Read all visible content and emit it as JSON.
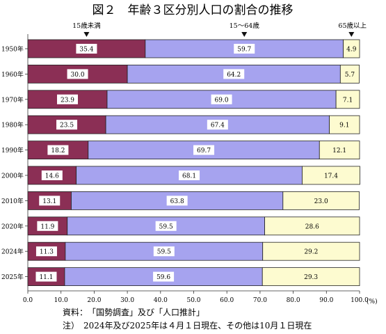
{
  "figure": {
    "title": "図２　年齢３区分別人口の割合の推移",
    "source": "資料：　「国勢調査」及び「人口推計」",
    "note": "注）　2024年及び2025年は４月１日現在、その他は10月１日現在"
  },
  "chart_data": {
    "type": "bar",
    "orientation": "horizontal",
    "stacked": true,
    "categories": [
      "1950年",
      "1960年",
      "1970年",
      "1980年",
      "1990年",
      "2000年",
      "2010年",
      "2020年",
      "2024年",
      "2025年"
    ],
    "series": [
      {
        "name": "15歳未満",
        "color": "#8b2f55",
        "label_bg": "#ffffff",
        "values": [
          35.4,
          30.0,
          23.9,
          23.5,
          18.2,
          14.6,
          13.1,
          11.9,
          11.3,
          11.1
        ]
      },
      {
        "name": "15～64歳",
        "color": "#a6a3ef",
        "label_bg": "#ffffff",
        "values": [
          59.7,
          64.2,
          69.0,
          67.4,
          69.7,
          68.1,
          63.8,
          59.5,
          59.5,
          59.6
        ]
      },
      {
        "name": "65歳以上",
        "color": "#fdfbd0",
        "label_bg": "#fdfbd0",
        "values": [
          4.9,
          5.7,
          7.1,
          9.1,
          12.1,
          17.4,
          23.0,
          28.6,
          29.2,
          29.3
        ]
      }
    ],
    "value_labels": [
      [
        "35.4",
        "30.0",
        "23.9",
        "23.5",
        "18.2",
        "14.6",
        "13.1",
        "11.9",
        "11.3",
        "11.1"
      ],
      [
        "59.7",
        "64.2",
        "69.0",
        "67.4",
        "69.7",
        "68.1",
        "63.8",
        "59.5",
        "59.5",
        "59.6"
      ],
      [
        "4.9",
        "5.7",
        "7.1",
        "9.1",
        "12.1",
        "17.4",
        "23.0",
        "28.6",
        "29.2",
        "29.3"
      ]
    ],
    "xlim": [
      0,
      100
    ],
    "x_ticks": [
      "0.0",
      "10.0",
      "20.0",
      "30.0",
      "40.0",
      "50.0",
      "60.0",
      "70.0",
      "80.0",
      "90.0",
      "100.0"
    ],
    "x_unit": "(%)",
    "legend_markers": [
      "15歳未満",
      "15～64歳",
      "65歳以上"
    ],
    "grid": false
  }
}
